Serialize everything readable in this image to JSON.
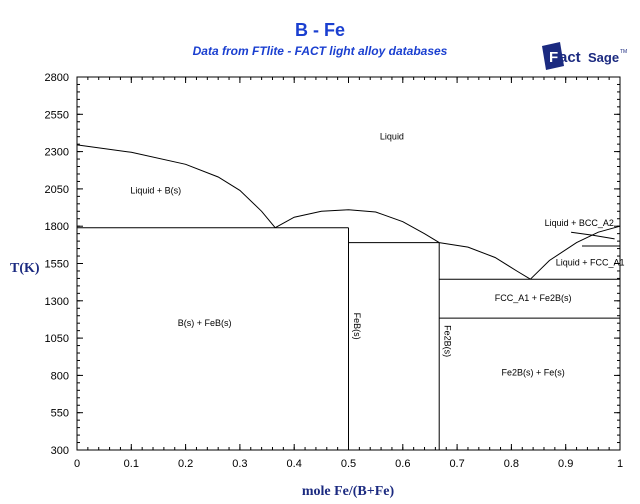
{
  "header": {
    "title": "B - Fe",
    "subtitle": "Data from FTlite - FACT light alloy databases",
    "logo_text": "FactSage"
  },
  "colors": {
    "title": "#1a3fd0",
    "axis_title": "#1b2a80",
    "logo": "#1b2a80"
  },
  "chart_data": {
    "type": "line",
    "title": "B - Fe",
    "xlabel": "mole Fe/(B+Fe)",
    "ylabel": "T(K)",
    "xlim": [
      0,
      1
    ],
    "ylim": [
      300,
      2800
    ],
    "xticks": [
      "0",
      "0.1",
      "0.2",
      "0.3",
      "0.4",
      "0.5",
      "0.6",
      "0.7",
      "0.8",
      "0.9",
      "1"
    ],
    "yticks": [
      "300",
      "550",
      "800",
      "1050",
      "1300",
      "1550",
      "1800",
      "2050",
      "2300",
      "2550",
      "2800"
    ],
    "grid": false,
    "lines": [
      {
        "name": "liquidus-B",
        "points": [
          [
            0,
            2345
          ],
          [
            0.1,
            2295
          ],
          [
            0.2,
            2215
          ],
          [
            0.26,
            2130
          ],
          [
            0.3,
            2040
          ],
          [
            0.34,
            1900
          ],
          [
            0.365,
            1790
          ]
        ]
      },
      {
        "name": "liquidus-FeB",
        "points": [
          [
            0.365,
            1790
          ],
          [
            0.4,
            1860
          ],
          [
            0.45,
            1900
          ],
          [
            0.5,
            1910
          ],
          [
            0.55,
            1895
          ],
          [
            0.6,
            1830
          ],
          [
            0.64,
            1750
          ],
          [
            0.667,
            1690
          ]
        ]
      },
      {
        "name": "liquidus-Fe2B",
        "points": [
          [
            0.667,
            1690
          ],
          [
            0.72,
            1660
          ],
          [
            0.77,
            1590
          ],
          [
            0.81,
            1500
          ],
          [
            0.835,
            1445
          ]
        ]
      },
      {
        "name": "liquidus-Fe",
        "points": [
          [
            0.835,
            1445
          ],
          [
            0.87,
            1570
          ],
          [
            0.92,
            1690
          ],
          [
            0.96,
            1760
          ],
          [
            1,
            1800
          ]
        ]
      },
      {
        "name": "bcc-boundary",
        "points": [
          [
            0.91,
            1760
          ],
          [
            0.95,
            1740
          ],
          [
            0.99,
            1715
          ]
        ]
      },
      {
        "name": "eutectic-B-FeB",
        "points": [
          [
            0,
            1790
          ],
          [
            0.5,
            1790
          ]
        ]
      },
      {
        "name": "peritectic-Fe2B",
        "points": [
          [
            0.5,
            1690
          ],
          [
            0.667,
            1690
          ]
        ]
      },
      {
        "name": "eutectic-Fe2B-Fe",
        "points": [
          [
            0.667,
            1445
          ],
          [
            1,
            1445
          ]
        ]
      },
      {
        "name": "gamma-alpha",
        "points": [
          [
            0.667,
            1184
          ],
          [
            1,
            1184
          ]
        ]
      },
      {
        "name": "delta-gamma",
        "points": [
          [
            0.93,
            1667
          ],
          [
            1,
            1667
          ]
        ]
      },
      {
        "name": "FeB-compound",
        "points": [
          [
            0.5,
            300
          ],
          [
            0.5,
            1790
          ]
        ]
      },
      {
        "name": "Fe2B-compound",
        "points": [
          [
            0.667,
            300
          ],
          [
            0.667,
            1690
          ]
        ]
      }
    ],
    "region_labels": [
      {
        "text": "Liquid",
        "x": 0.58,
        "T": 2380,
        "vertical": false
      },
      {
        "text": "Liquid + B(s)",
        "x": 0.145,
        "T": 2020,
        "vertical": false
      },
      {
        "text": "B(s) + FeB(s)",
        "x": 0.235,
        "T": 1130,
        "vertical": false
      },
      {
        "text": "FeB(s)",
        "x": 0.51,
        "T": 1130,
        "vertical": true
      },
      {
        "text": "Fe2B(s)",
        "x": 0.677,
        "T": 1030,
        "vertical": true
      },
      {
        "text": "FCC_A1 + Fe2B(s)",
        "x": 0.84,
        "T": 1300,
        "vertical": false
      },
      {
        "text": "Fe2B(s) + Fe(s)",
        "x": 0.84,
        "T": 800,
        "vertical": false
      },
      {
        "text": "Liquid + BCC_A2",
        "x": 0.925,
        "T": 1800,
        "vertical": false
      },
      {
        "text": "Liquid + FCC_A1",
        "x": 0.945,
        "T": 1535,
        "vertical": false
      }
    ]
  }
}
